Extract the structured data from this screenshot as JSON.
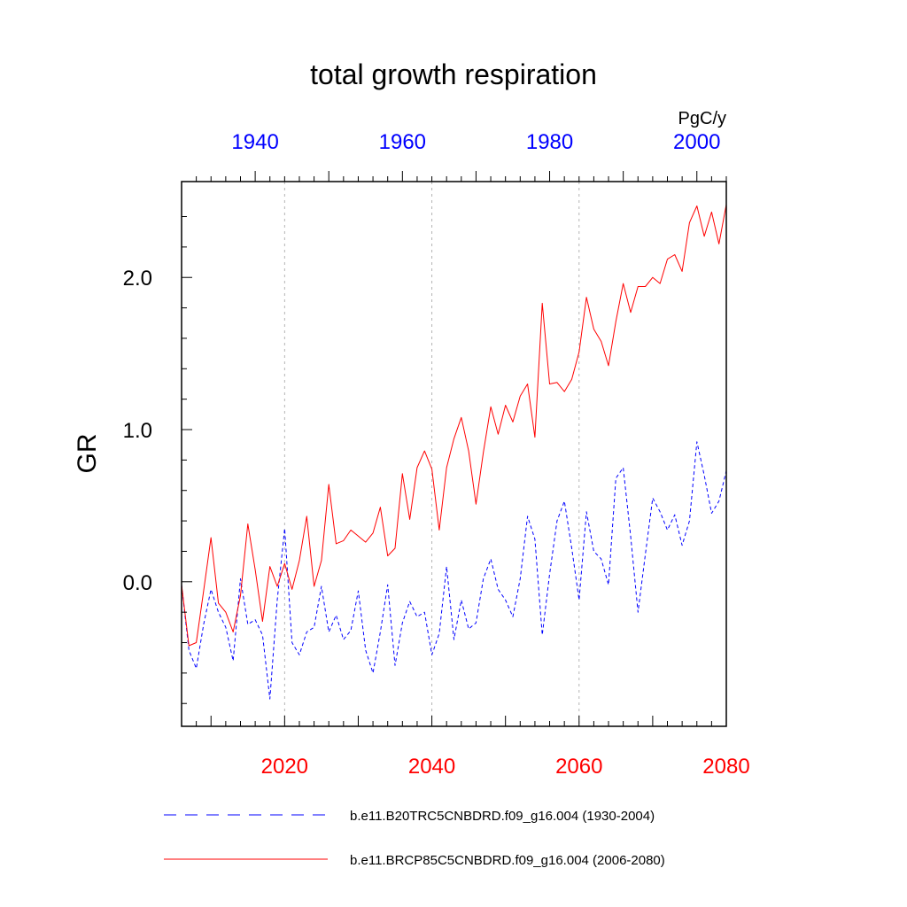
{
  "chart_data": {
    "type": "line",
    "title": "total growth respiration",
    "units": "PgC/y",
    "ylabel": "GR",
    "ylim": [
      -0.95,
      2.63
    ],
    "yticks": [
      0.0,
      1.0,
      2.0
    ],
    "ytick_labels": [
      "0.0",
      "1.0",
      "2.0"
    ],
    "grid": "vertical dashed at 2020, 2040, 2060",
    "bottom_axis": {
      "color": "#ff0000",
      "range": [
        2006,
        2080
      ],
      "ticks": [
        2020,
        2040,
        2060,
        2080
      ],
      "tick_labels": [
        "2020",
        "2040",
        "2060",
        "2080"
      ]
    },
    "top_axis": {
      "color": "#0000ff",
      "range": [
        1930,
        2004
      ],
      "ticks": [
        1940,
        1960,
        1980,
        2000
      ],
      "tick_labels": [
        "1940",
        "1960",
        "1980",
        "2000"
      ]
    },
    "series": [
      {
        "name": "b.e11.B20TRC5CNBDRD.f09_g16.004 (1930-2004)",
        "axis": "top",
        "color": "#0000ff",
        "style": "dashed",
        "x_start": 1930,
        "values": [
          -0.02,
          -0.45,
          -0.57,
          -0.28,
          -0.05,
          -0.2,
          -0.3,
          -0.52,
          0.02,
          -0.28,
          -0.25,
          -0.35,
          -0.77,
          -0.12,
          0.35,
          -0.4,
          -0.48,
          -0.33,
          -0.3,
          -0.03,
          -0.33,
          -0.22,
          -0.38,
          -0.32,
          -0.06,
          -0.45,
          -0.6,
          -0.33,
          -0.02,
          -0.55,
          -0.27,
          -0.13,
          -0.23,
          -0.2,
          -0.48,
          -0.34,
          0.1,
          -0.38,
          -0.12,
          -0.31,
          -0.27,
          0.02,
          0.15,
          -0.05,
          -0.12,
          -0.23,
          0.02,
          0.43,
          0.28,
          -0.35,
          0.05,
          0.4,
          0.53,
          0.22,
          -0.12,
          0.46,
          0.2,
          0.15,
          -0.02,
          0.68,
          0.75,
          0.3,
          -0.2,
          0.18,
          0.55,
          0.46,
          0.34,
          0.44,
          0.24,
          0.4,
          0.92,
          0.7,
          0.45,
          0.53,
          0.73
        ]
      },
      {
        "name": "b.e11.BRCP85C5CNBDRD.f09_g16.004 (2006-2080)",
        "axis": "bottom",
        "color": "#ff0000",
        "style": "solid",
        "x_start": 2006,
        "values": [
          -0.02,
          -0.42,
          -0.4,
          -0.06,
          0.29,
          -0.14,
          -0.2,
          -0.33,
          -0.09,
          0.38,
          0.08,
          -0.26,
          0.1,
          -0.03,
          0.12,
          -0.05,
          0.14,
          0.43,
          -0.03,
          0.14,
          0.64,
          0.25,
          0.27,
          0.34,
          0.3,
          0.26,
          0.32,
          0.49,
          0.17,
          0.22,
          0.71,
          0.41,
          0.75,
          0.86,
          0.74,
          0.34,
          0.75,
          0.94,
          1.08,
          0.86,
          0.51,
          0.85,
          1.15,
          0.97,
          1.16,
          1.05,
          1.22,
          1.3,
          0.95,
          1.83,
          1.3,
          1.31,
          1.25,
          1.33,
          1.51,
          1.87,
          1.66,
          1.58,
          1.42,
          1.71,
          1.96,
          1.77,
          1.94,
          1.94,
          2.0,
          1.96,
          2.12,
          2.15,
          2.04,
          2.36,
          2.47,
          2.27,
          2.43,
          2.22,
          2.48
        ]
      }
    ]
  }
}
